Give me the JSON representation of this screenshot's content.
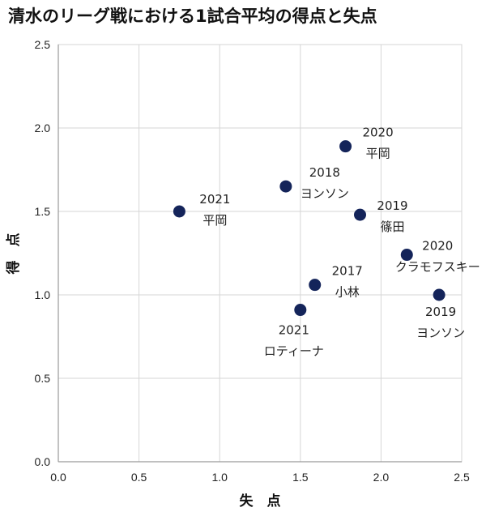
{
  "chart_data": {
    "type": "scatter",
    "title": "清水のリーグ戦における1試合平均の得点と失点",
    "xlabel": "失　点",
    "ylabel": "得　点",
    "xlim": [
      0.0,
      2.5
    ],
    "ylim": [
      0.0,
      2.5
    ],
    "x_ticks": [
      "0.0",
      "0.5",
      "1.0",
      "1.5",
      "2.0",
      "2.5"
    ],
    "y_ticks": [
      "0.0",
      "0.5",
      "1.0",
      "1.5",
      "2.0",
      "2.5"
    ],
    "grid": true,
    "marker_color": "#14245a",
    "points": [
      {
        "x": 0.75,
        "y": 1.5,
        "year": "2021",
        "name": "平岡"
      },
      {
        "x": 1.41,
        "y": 1.65,
        "year": "2018",
        "name": "ヨンソン"
      },
      {
        "x": 1.78,
        "y": 1.89,
        "year": "2020",
        "name": "平岡"
      },
      {
        "x": 1.87,
        "y": 1.48,
        "year": "2019",
        "name": "篠田"
      },
      {
        "x": 2.16,
        "y": 1.24,
        "year": "2020",
        "name": "クラモフスキー"
      },
      {
        "x": 1.59,
        "y": 1.06,
        "year": "2017",
        "name": "小林"
      },
      {
        "x": 1.5,
        "y": 0.91,
        "year": "2021",
        "name": "ロティーナ"
      },
      {
        "x": 2.36,
        "y": 1.0,
        "year": "2019",
        "name": "ヨンソン"
      }
    ]
  }
}
